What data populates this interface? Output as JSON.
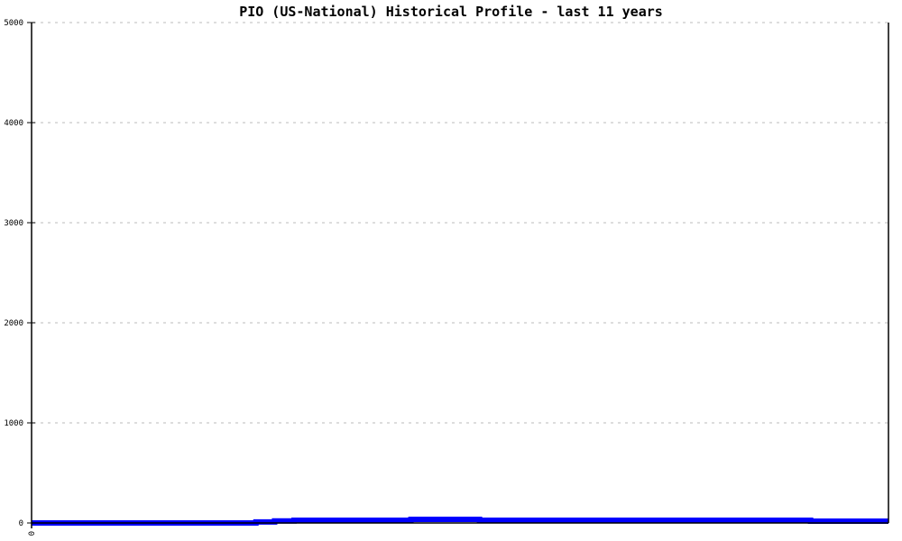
{
  "chart_data": {
    "type": "line",
    "title": "PIO (US-National) Historical Profile - last 11 years",
    "xlabel": "",
    "ylabel": "",
    "ylim": [
      0,
      5000
    ],
    "xlim": [
      0,
      11
    ],
    "x_tick_labels": [
      "0"
    ],
    "y_ticks": [
      0,
      1000,
      2000,
      3000,
      4000,
      5000
    ],
    "y_tick_labels": [
      "0",
      "1000",
      "2000",
      "3000",
      "4000",
      "5000"
    ],
    "grid": "horizontal dotted",
    "line_style": "step",
    "series": [
      {
        "color": "#0000ff",
        "x": [
          0,
          2.88,
          3.12,
          3.37,
          4.87,
          5.75,
          10.0,
          11
        ],
        "values": [
          0,
          10,
          20,
          27,
          36,
          27,
          18,
          18
        ]
      }
    ],
    "colors": {
      "line": "#0000ff",
      "grid": "#bbbbbb",
      "axis": "#000000"
    }
  }
}
